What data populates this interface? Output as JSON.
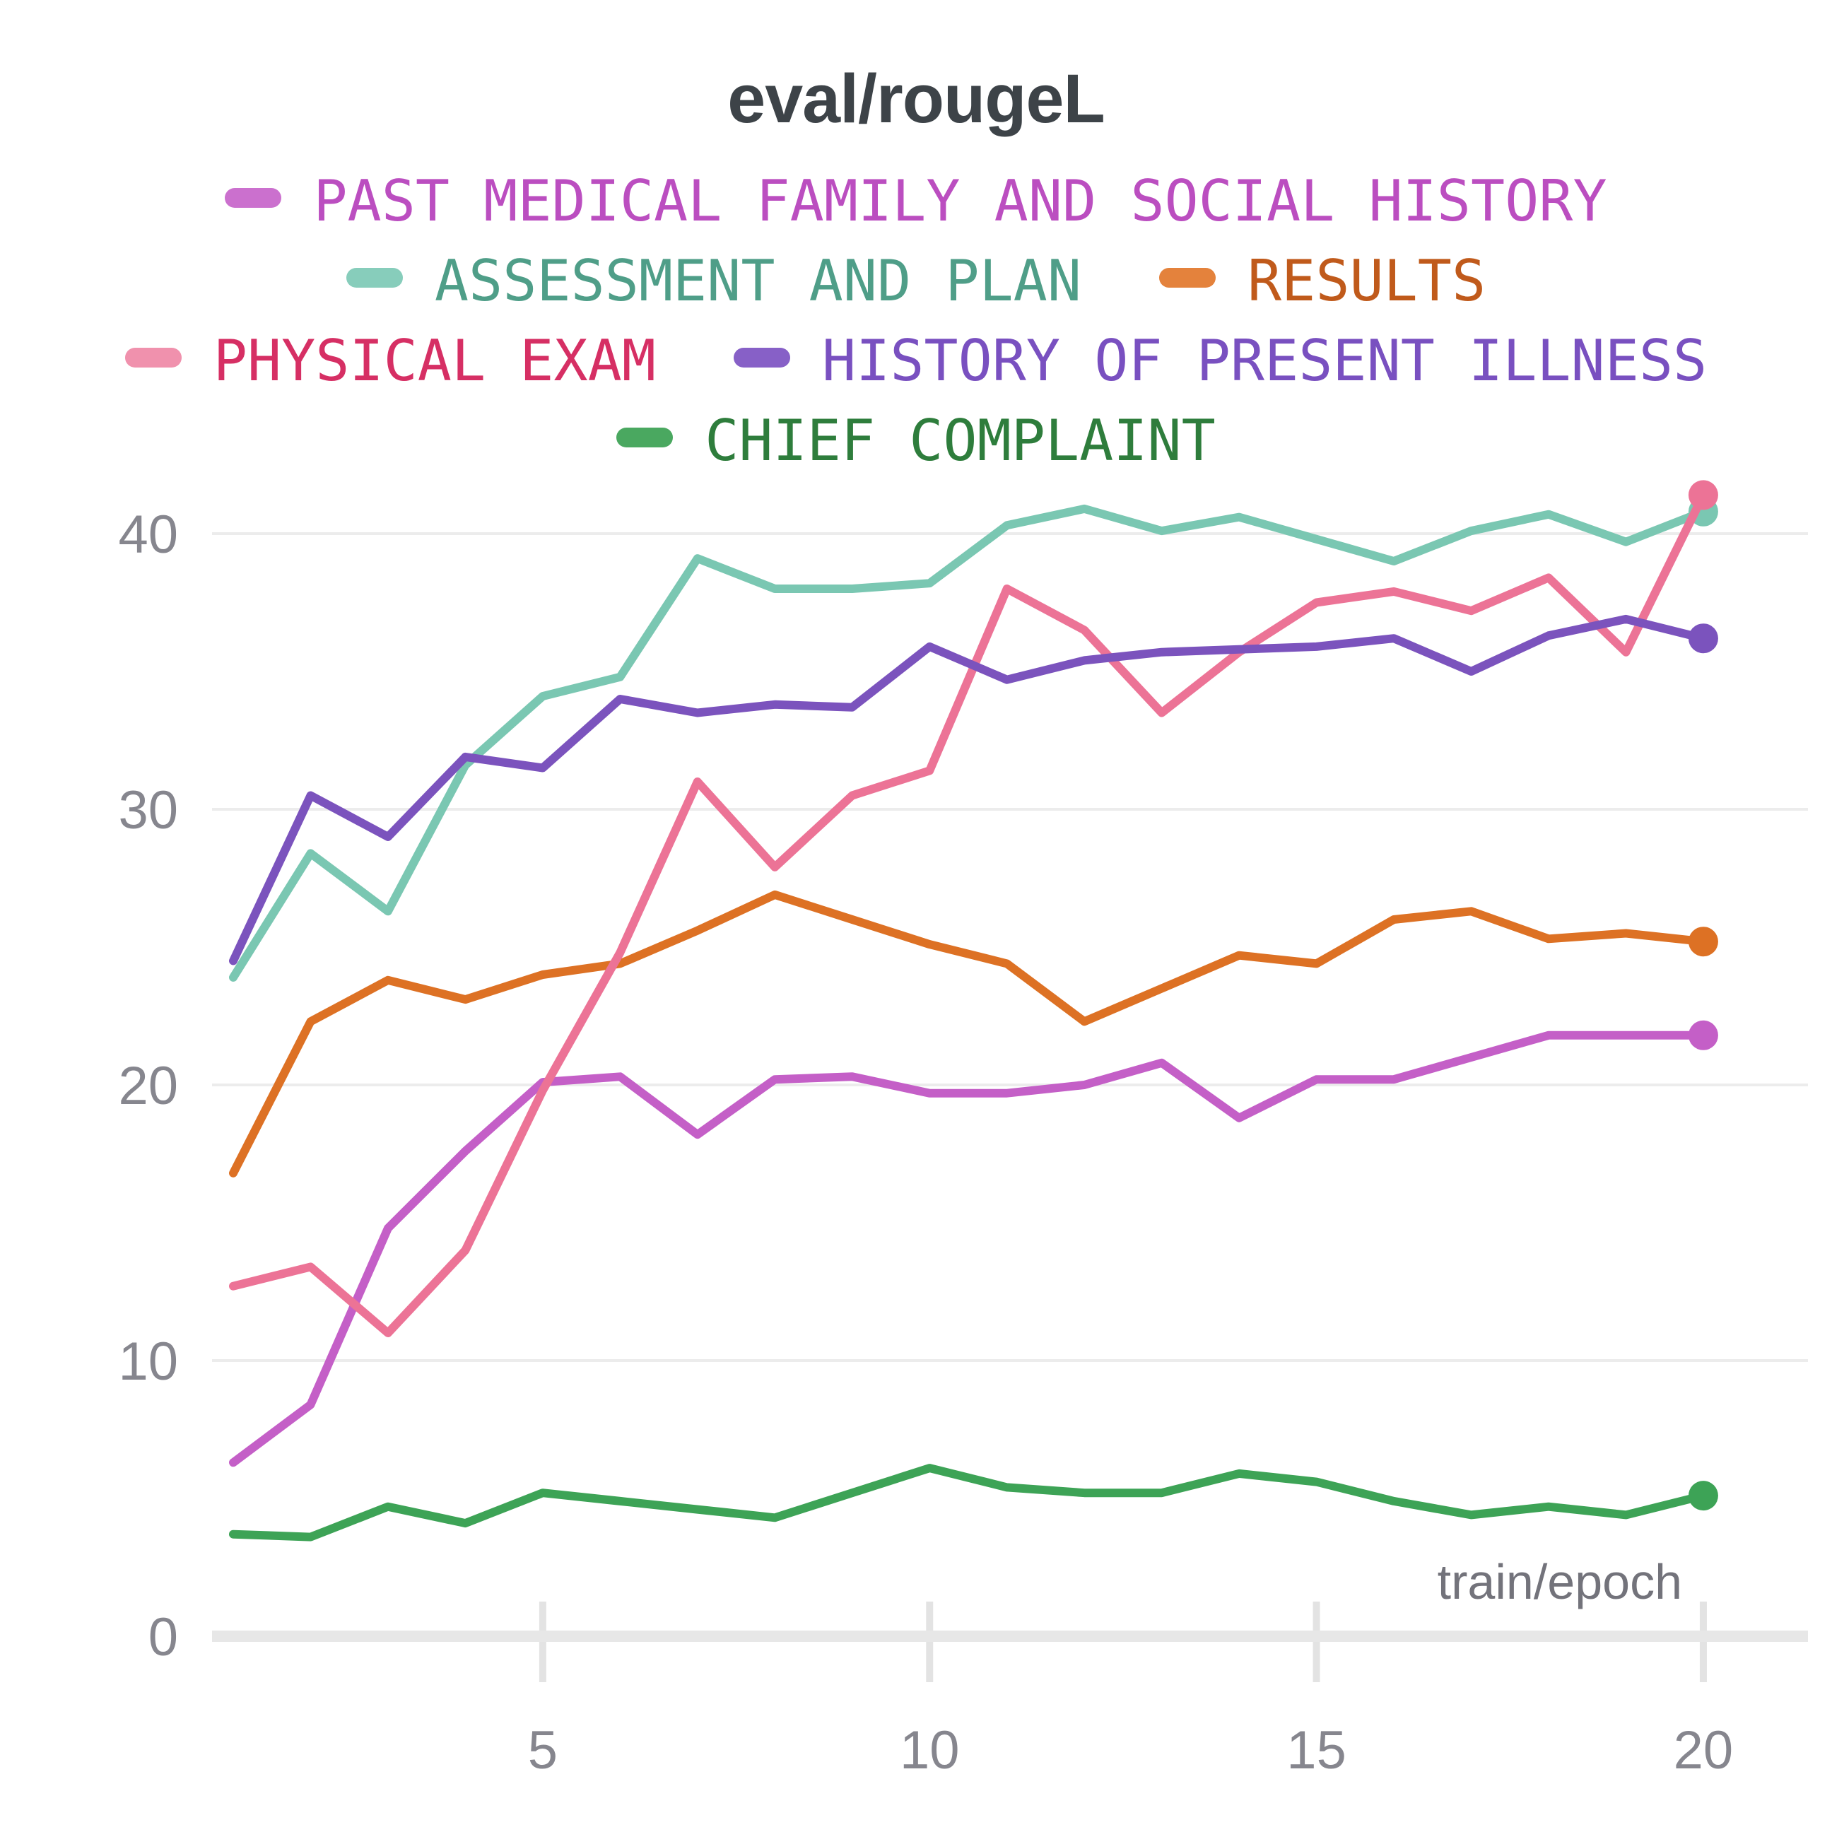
{
  "title": "eval/rougeL",
  "axes": {
    "x_label": "train/epoch",
    "x_ticks": [
      "5",
      "10",
      "15",
      "20"
    ],
    "x_tick_values": [
      5,
      10,
      15,
      20
    ],
    "y_ticks": [
      "0",
      "10",
      "20",
      "30",
      "40"
    ],
    "y_tick_values": [
      0,
      10,
      20,
      30,
      40
    ],
    "tick_label_color": "#86868e",
    "x_label_color": "#73737b",
    "gridline_color": "#ececec",
    "axis_band_color": "#e7e7e7"
  },
  "chart_data": {
    "type": "line",
    "title": "eval/rougeL",
    "xlabel": "train/epoch",
    "ylabel": "",
    "x": [
      1,
      2,
      3,
      4,
      5,
      6,
      7,
      8,
      9,
      10,
      11,
      12,
      13,
      14,
      15,
      16,
      17,
      18,
      19,
      20
    ],
    "xlim": [
      0.7,
      21.4
    ],
    "ylim": [
      0,
      42
    ],
    "grid": "horizontal",
    "legend_position": "top-center",
    "legend_rows": [
      [
        "past_medical"
      ],
      [
        "assessment",
        "results"
      ],
      [
        "physical_exam",
        "hpi"
      ],
      [
        "chief_complaint"
      ]
    ],
    "series": [
      {
        "key": "past_medical",
        "name": "PAST MEDICAL FAMILY AND SOCIAL HISTORY",
        "color": "#c45fc7",
        "swatch_color": "#cb70ce",
        "text_color": "#bb4ec0",
        "end_marker": true,
        "values": [
          6.3,
          8.4,
          14.8,
          17.6,
          20.1,
          20.3,
          18.2,
          20.2,
          20.3,
          19.7,
          19.7,
          20.0,
          20.8,
          18.8,
          20.2,
          20.2,
          21.0,
          21.8,
          21.8,
          21.8
        ]
      },
      {
        "key": "assessment",
        "name": "ASSESSMENT AND PLAN",
        "color": "#7ac7b2",
        "swatch_color": "#87cdbb",
        "text_color": "#4f9e88",
        "end_marker": true,
        "values": [
          23.9,
          28.4,
          26.3,
          31.6,
          34.1,
          34.8,
          39.1,
          38.0,
          38.0,
          38.2,
          40.3,
          40.9,
          40.1,
          40.6,
          39.8,
          39.0,
          40.1,
          40.7,
          39.7,
          40.8
        ]
      },
      {
        "key": "results",
        "name": "RESULTS",
        "color": "#dd7124",
        "swatch_color": "#e4823c",
        "text_color": "#c05a1b",
        "end_marker": true,
        "values": [
          16.8,
          22.3,
          23.8,
          23.1,
          24.0,
          24.4,
          25.6,
          26.9,
          26.0,
          25.1,
          24.4,
          22.3,
          23.5,
          24.7,
          24.4,
          26.0,
          26.3,
          25.3,
          25.5,
          25.2
        ]
      },
      {
        "key": "physical_exam",
        "name": "PHYSICAL EXAM",
        "color": "#ec7396",
        "swatch_color": "#f091ad",
        "text_color": "#d62f64",
        "end_marker": true,
        "values": [
          12.7,
          13.4,
          11.0,
          14.0,
          19.8,
          24.8,
          31.0,
          27.9,
          30.5,
          31.4,
          38.0,
          36.5,
          33.5,
          35.7,
          37.5,
          37.9,
          37.2,
          38.4,
          35.7,
          41.4
        ]
      },
      {
        "key": "hpi",
        "name": "HISTORY OF PRESENT ILLNESS",
        "color": "#7b53bd",
        "swatch_color": "#8760c7",
        "text_color": "#7950c0",
        "end_marker": true,
        "values": [
          24.5,
          30.5,
          29.0,
          31.9,
          31.5,
          34.0,
          33.5,
          33.8,
          33.7,
          35.9,
          34.7,
          35.4,
          35.7,
          35.8,
          35.9,
          36.2,
          35.0,
          36.3,
          36.9,
          36.2
        ]
      },
      {
        "key": "chief_complaint",
        "name": "CHIEF COMPLAINT",
        "color": "#3da356",
        "swatch_color": "#4aa860",
        "text_color": "#2e7d3c",
        "end_marker": true,
        "values": [
          3.7,
          3.6,
          4.7,
          4.1,
          5.2,
          4.9,
          4.6,
          4.3,
          5.2,
          6.1,
          5.4,
          5.2,
          5.2,
          5.9,
          5.6,
          4.9,
          4.4,
          4.7,
          4.4,
          5.1
        ]
      }
    ]
  }
}
